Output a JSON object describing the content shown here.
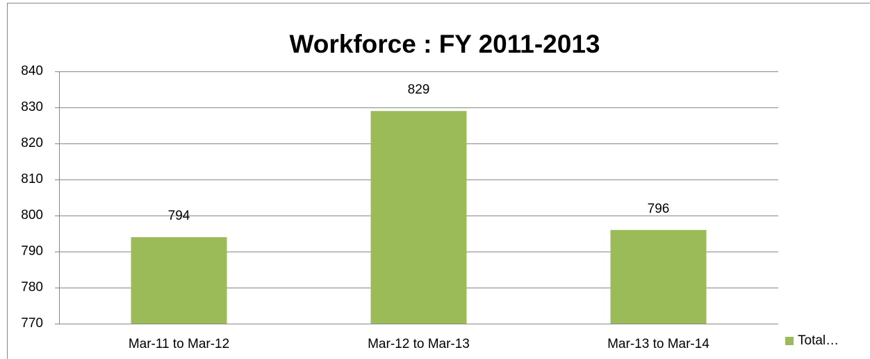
{
  "chart_data": {
    "type": "bar",
    "title": "Workforce : FY 2011-2013",
    "categories": [
      "Mar-11 to Mar-12",
      "Mar-12 to Mar-13",
      "Mar-13 to Mar-14"
    ],
    "series": [
      {
        "name": "Total…",
        "color": "#9bbb59",
        "values": [
          794,
          829,
          796
        ]
      }
    ],
    "ylim": [
      770,
      840
    ],
    "yticks": [
      770,
      780,
      790,
      800,
      810,
      820,
      830,
      840
    ],
    "grid": true,
    "legend": "right"
  }
}
